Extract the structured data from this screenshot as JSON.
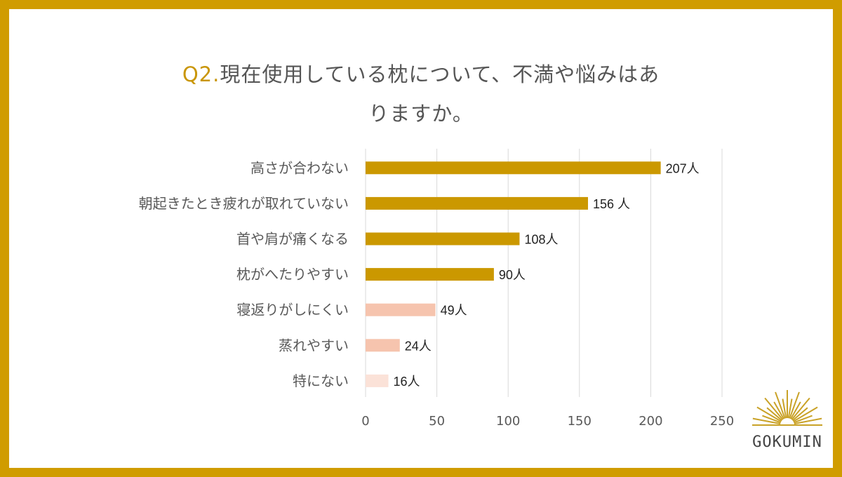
{
  "title": {
    "prefix": "Q2.",
    "line1": "現在使用している枕について、不満や悩みはあ",
    "line2": "りますか。"
  },
  "chart_data": {
    "type": "bar",
    "orientation": "horizontal",
    "categories": [
      "高さが合わない",
      "朝起きたとき疲れが取れていない",
      "首や肩が痛くなる",
      "枕がへたりやすい",
      "寝返りがしにくい",
      "蒸れやすい",
      "特にない"
    ],
    "values": [
      207,
      156,
      108,
      90,
      49,
      24,
      16
    ],
    "data_labels": [
      "207人",
      "156 人",
      "108人",
      "90人",
      "49人",
      "24人",
      "16人"
    ],
    "bar_colors": [
      "#CB9800",
      "#CB9800",
      "#CB9800",
      "#CB9800",
      "#F6C4AE",
      "#F6C4AE",
      "#FBE2D8"
    ],
    "xlim": [
      0,
      250
    ],
    "xticks": [
      "0",
      "50",
      "100",
      "150",
      "200",
      "250"
    ],
    "grid": true
  },
  "logo": {
    "text": "GOKUMIN"
  },
  "colors": {
    "frame": "#D09C00",
    "accent": "#C99608",
    "text": "#555555"
  }
}
